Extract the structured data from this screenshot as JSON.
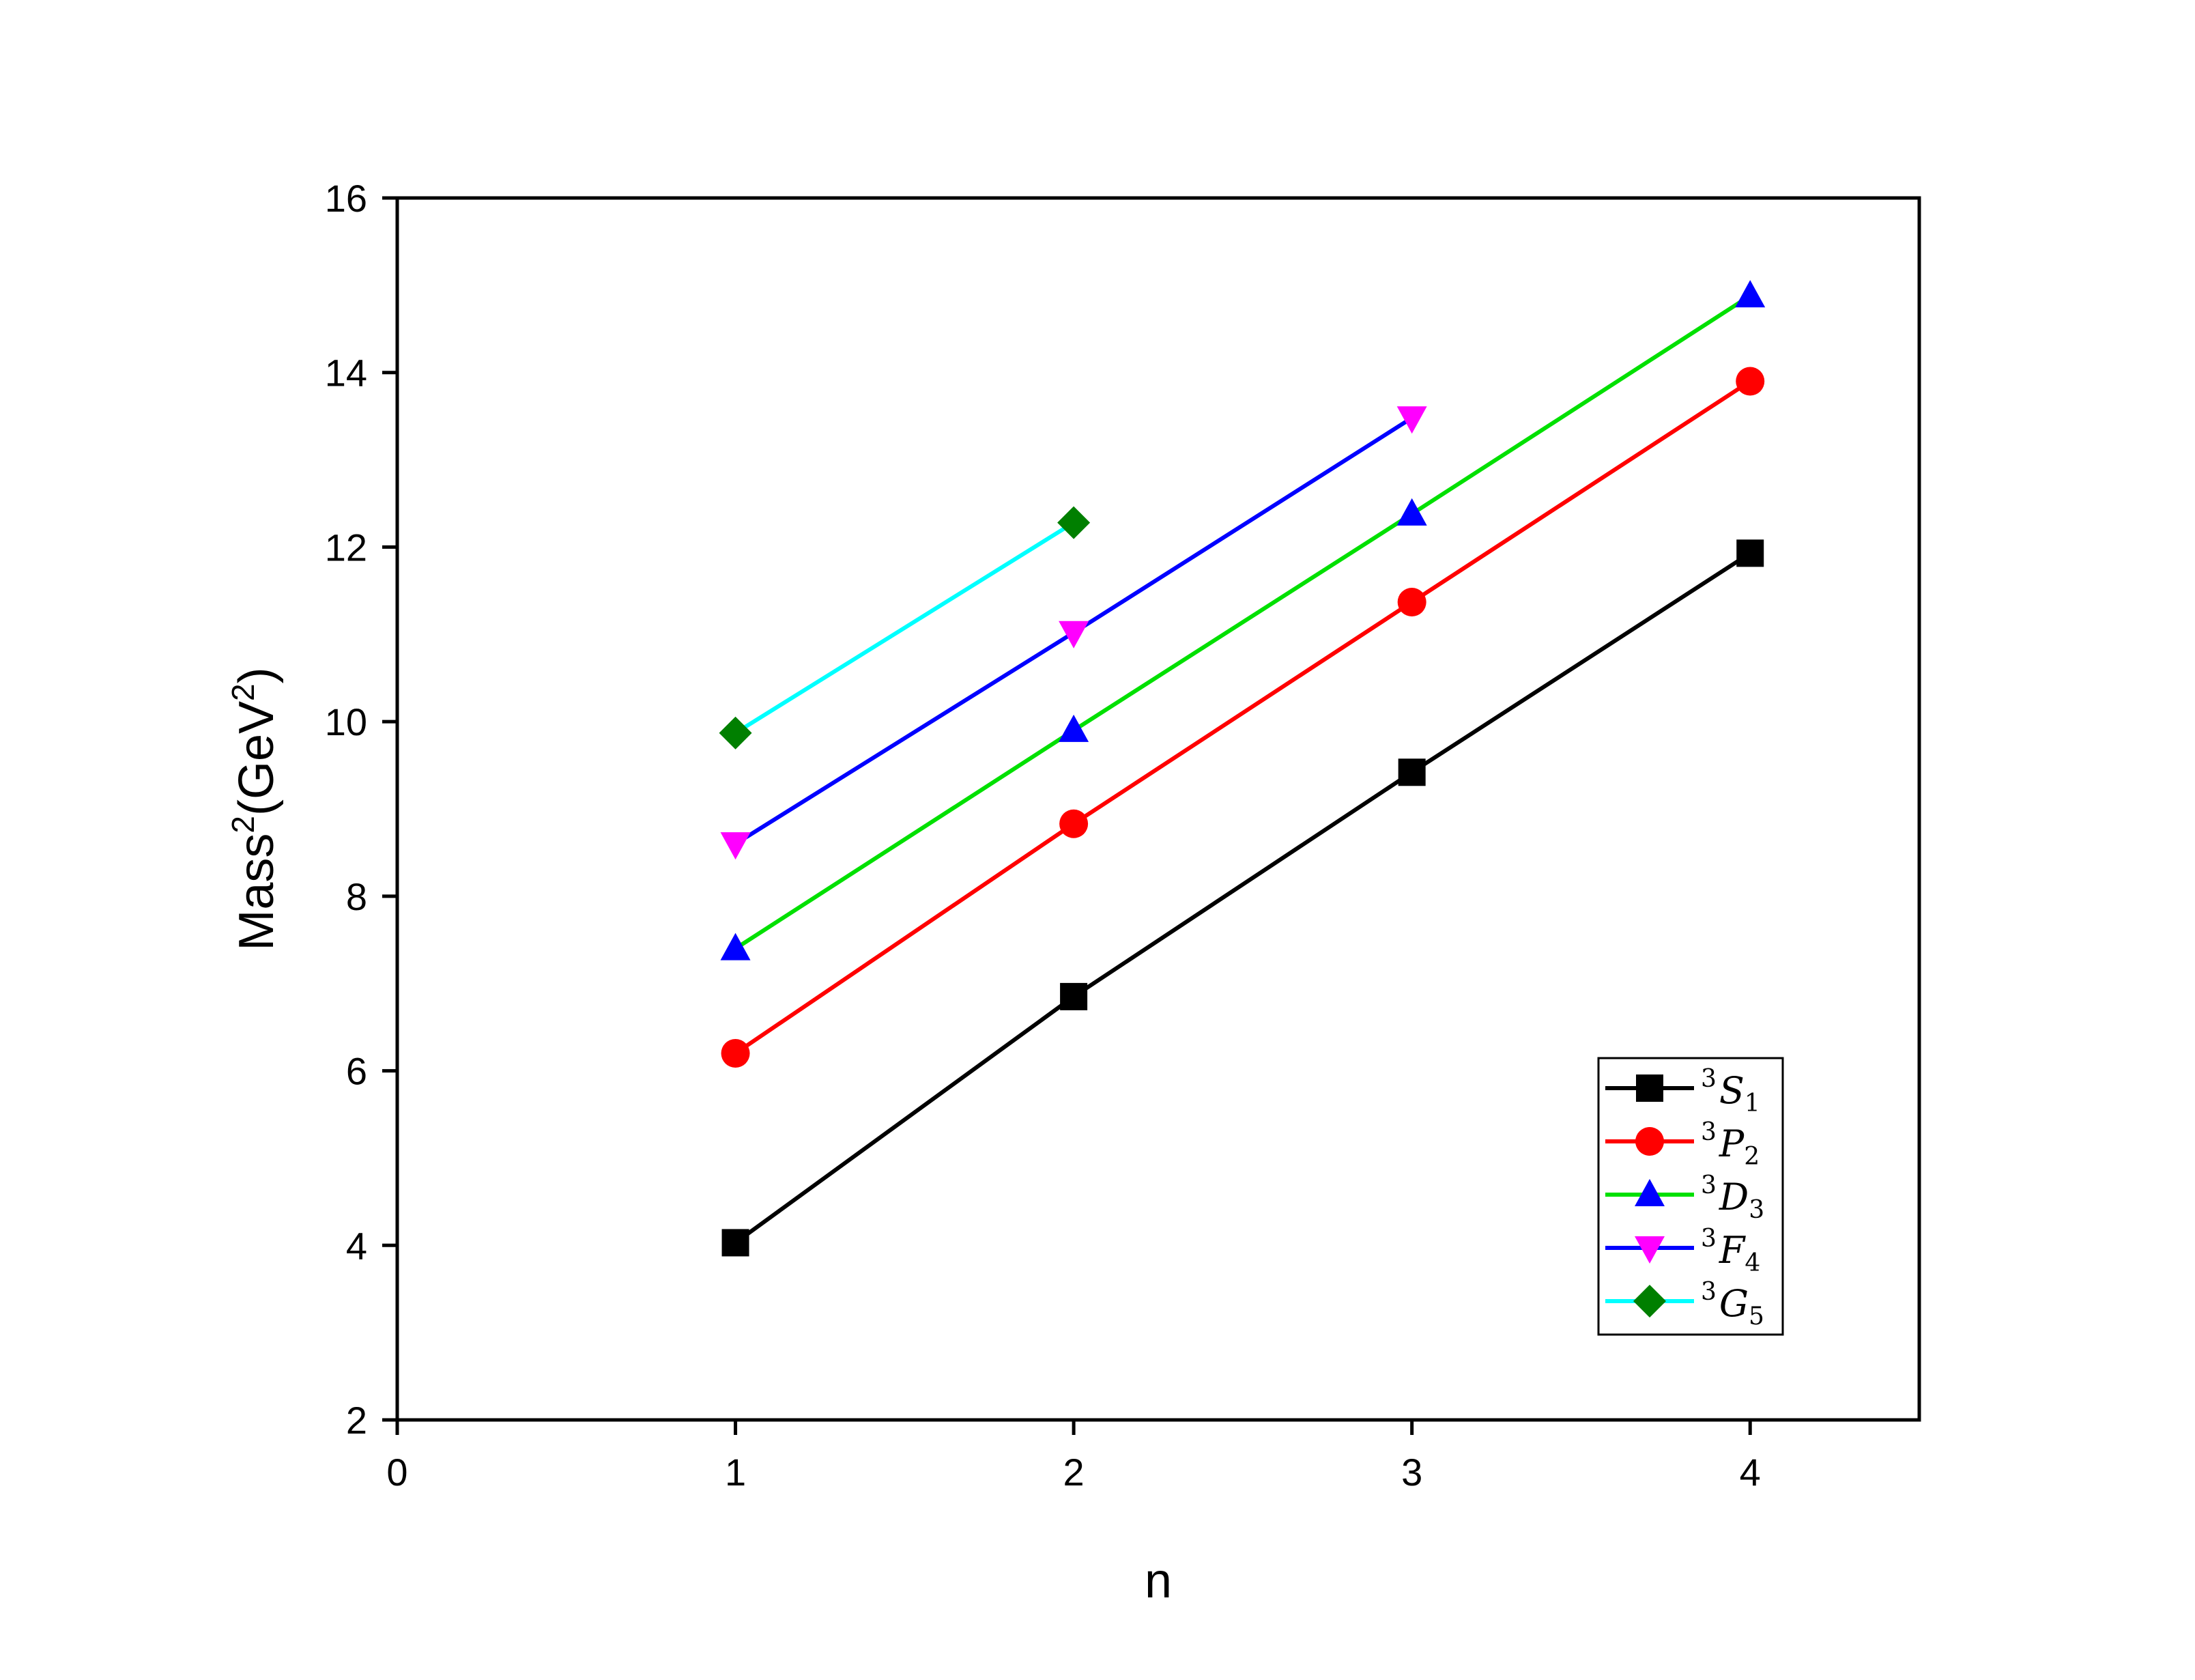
{
  "chart_data": {
    "type": "line",
    "xlabel": "n",
    "ylabel": {
      "base": "Mass",
      "sup1": "2",
      "unit_open": "(GeV",
      "sup2": "2",
      "unit_close": ")"
    },
    "xlim": [
      0,
      4.5
    ],
    "ylim": [
      2,
      16
    ],
    "xticks": [
      0,
      1,
      2,
      3,
      4
    ],
    "yticks": [
      2,
      4,
      6,
      8,
      10,
      12,
      14,
      16
    ],
    "grid": false,
    "legend_position": "bottom-right",
    "series": [
      {
        "name": {
          "sup": "3",
          "letter": "S",
          "sub": "1"
        },
        "color": "#000000",
        "marker": "square",
        "x": [
          1,
          2,
          3,
          4
        ],
        "y": [
          4.03,
          6.85,
          9.42,
          11.93
        ]
      },
      {
        "name": {
          "sup": "3",
          "letter": "P",
          "sub": "2"
        },
        "color": "#ff0000",
        "marker": "circle",
        "x": [
          1,
          2,
          3,
          4
        ],
        "y": [
          6.2,
          8.83,
          11.37,
          13.9
        ]
      },
      {
        "name": {
          "sup": "3",
          "letter": "D",
          "sub": "3"
        },
        "color": "#00e000",
        "markerColor": "#0000ff",
        "marker": "triangle-up",
        "x": [
          1,
          2,
          3,
          4
        ],
        "y": [
          7.4,
          9.9,
          12.38,
          14.88
        ]
      },
      {
        "name": {
          "sup": "3",
          "letter": "F",
          "sub": "4"
        },
        "color": "#0000ff",
        "markerColor": "#ff00ff",
        "marker": "triangle-down",
        "x": [
          1,
          2,
          3
        ],
        "y": [
          8.6,
          11.02,
          13.48
        ]
      },
      {
        "name": {
          "sup": "3",
          "letter": "G",
          "sub": "5"
        },
        "color": "#00ffff",
        "markerColor": "#007f00",
        "marker": "diamond",
        "x": [
          1,
          2
        ],
        "y": [
          9.87,
          12.28
        ]
      }
    ]
  }
}
